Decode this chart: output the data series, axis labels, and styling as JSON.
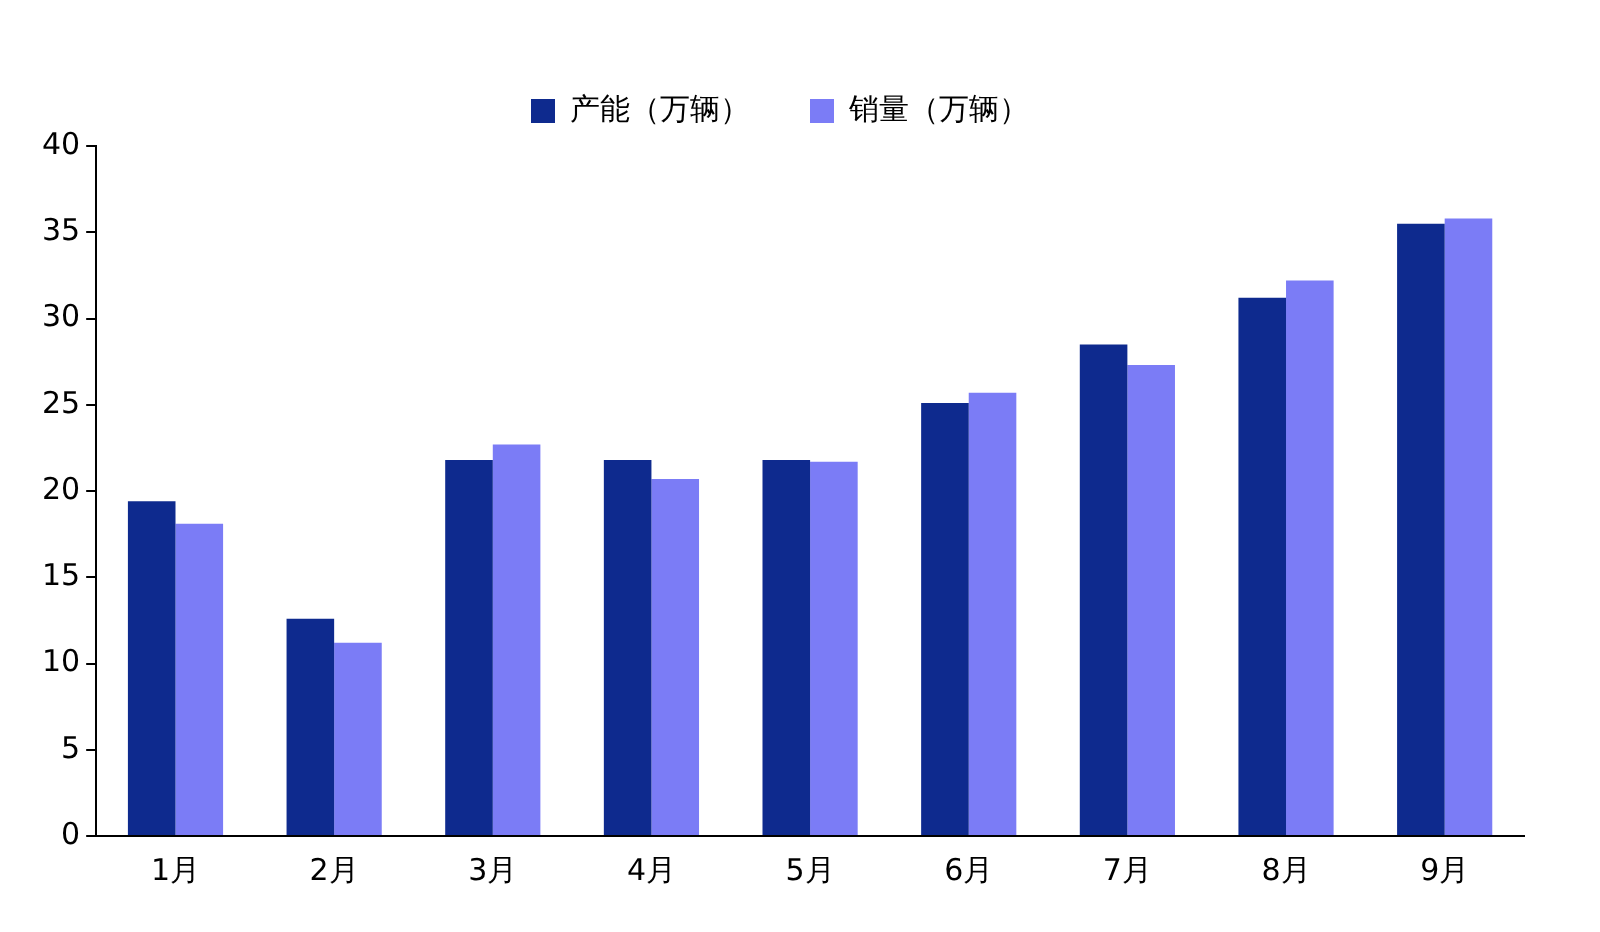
{
  "chart_data": {
    "type": "bar",
    "categories": [
      "1月",
      "2月",
      "3月",
      "4月",
      "5月",
      "6月",
      "7月",
      "8月",
      "9月"
    ],
    "series": [
      {
        "name": "产能（万辆）",
        "color": "#0e2a8e",
        "values": [
          19.4,
          12.6,
          21.8,
          21.8,
          21.8,
          25.1,
          28.5,
          31.2,
          35.5
        ]
      },
      {
        "name": "销量（万辆）",
        "color": "#7b7cf6",
        "values": [
          18.1,
          11.2,
          22.7,
          20.7,
          21.7,
          25.7,
          27.3,
          32.2,
          35.8
        ]
      }
    ],
    "ylim": [
      0,
      40
    ],
    "yticks": [
      0,
      5,
      10,
      15,
      20,
      25,
      30,
      35,
      40
    ],
    "grid": false,
    "legend": "top"
  }
}
